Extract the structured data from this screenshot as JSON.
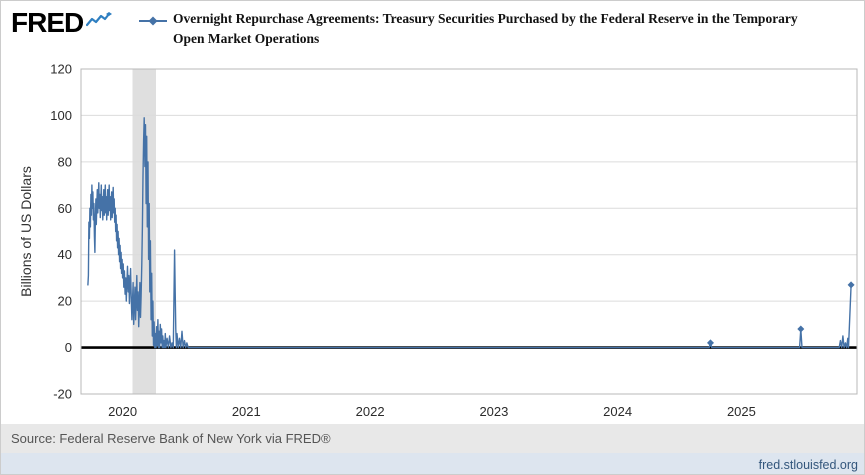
{
  "header": {
    "logo_text": "FRED",
    "title": "Overnight Repurchase Agreements: Treasury Securities Purchased by the Federal Reserve in the Temporary Open Market Operations"
  },
  "footer": {
    "source": "Source: Federal Reserve Bank of New York via FRED®",
    "link": "fred.stlouisfed.org"
  },
  "icons": {
    "logo_chart_icon": "line-chart-squiggle",
    "legend_marker_icon": "line-with-diamond"
  },
  "chart_data": {
    "type": "line",
    "title": "Overnight Repurchase Agreements: Treasury Securities Purchased by the Federal Reserve in the Temporary Open Market Operations",
    "xlabel": "",
    "ylabel": "Billions of US Dollars",
    "ylim": [
      -20,
      120
    ],
    "yticks": [
      -20,
      0,
      20,
      40,
      60,
      80,
      100,
      120
    ],
    "x_range": [
      2019.664,
      2025.934
    ],
    "xticks": [
      2020,
      2021,
      2022,
      2023,
      2024,
      2025
    ],
    "grid": "horizontal",
    "legend_position": "top",
    "zero_line": {
      "value": 0,
      "color": "#000000"
    },
    "recession_band": {
      "start": 2020.08,
      "end": 2020.27,
      "color": "#dfdfdf"
    },
    "series": [
      {
        "name": "Overnight Repurchase Agreements (Billions of US Dollars)",
        "color": "#4572a7",
        "points": [
          [
            2019.72,
            27
          ],
          [
            2019.724,
            31
          ],
          [
            2019.728,
            54
          ],
          [
            2019.732,
            47
          ],
          [
            2019.736,
            60
          ],
          [
            2019.74,
            52
          ],
          [
            2019.744,
            66
          ],
          [
            2019.748,
            57
          ],
          [
            2019.752,
            70
          ],
          [
            2019.756,
            60
          ],
          [
            2019.76,
            67
          ],
          [
            2019.764,
            55
          ],
          [
            2019.768,
            62
          ],
          [
            2019.772,
            48
          ],
          [
            2019.776,
            41
          ],
          [
            2019.78,
            56
          ],
          [
            2019.784,
            64
          ],
          [
            2019.788,
            53
          ],
          [
            2019.792,
            61
          ],
          [
            2019.796,
            68
          ],
          [
            2019.8,
            58
          ],
          [
            2019.804,
            65
          ],
          [
            2019.808,
            71
          ],
          [
            2019.812,
            60
          ],
          [
            2019.816,
            66
          ],
          [
            2019.82,
            56
          ],
          [
            2019.824,
            63
          ],
          [
            2019.828,
            70
          ],
          [
            2019.832,
            59
          ],
          [
            2019.836,
            65
          ],
          [
            2019.84,
            55
          ],
          [
            2019.844,
            62
          ],
          [
            2019.848,
            68
          ],
          [
            2019.852,
            57
          ],
          [
            2019.856,
            64
          ],
          [
            2019.86,
            70
          ],
          [
            2019.864,
            58
          ],
          [
            2019.868,
            65
          ],
          [
            2019.872,
            55
          ],
          [
            2019.876,
            61
          ],
          [
            2019.88,
            68
          ],
          [
            2019.884,
            57
          ],
          [
            2019.888,
            63
          ],
          [
            2019.892,
            70
          ],
          [
            2019.896,
            59
          ],
          [
            2019.9,
            65
          ],
          [
            2019.904,
            55
          ],
          [
            2019.908,
            61
          ],
          [
            2019.912,
            67
          ],
          [
            2019.916,
            56
          ],
          [
            2019.92,
            62
          ],
          [
            2019.924,
            69
          ],
          [
            2019.928,
            58
          ],
          [
            2019.932,
            64
          ],
          [
            2019.936,
            54
          ],
          [
            2019.94,
            60
          ],
          [
            2019.944,
            50
          ],
          [
            2019.948,
            57
          ],
          [
            2019.952,
            46
          ],
          [
            2019.956,
            53
          ],
          [
            2019.96,
            43
          ],
          [
            2019.964,
            50
          ],
          [
            2019.968,
            40
          ],
          [
            2019.972,
            47
          ],
          [
            2019.976,
            37
          ],
          [
            2019.98,
            44
          ],
          [
            2019.984,
            34
          ],
          [
            2019.988,
            41
          ],
          [
            2019.992,
            32
          ],
          [
            2019.996,
            38
          ],
          [
            2020.0,
            30
          ],
          [
            2020.005,
            36
          ],
          [
            2020.01,
            26
          ],
          [
            2020.015,
            33
          ],
          [
            2020.02,
            23
          ],
          [
            2020.025,
            30
          ],
          [
            2020.03,
            20
          ],
          [
            2020.035,
            28
          ],
          [
            2020.04,
            35
          ],
          [
            2020.045,
            24
          ],
          [
            2020.05,
            31
          ],
          [
            2020.055,
            19
          ],
          [
            2020.06,
            27
          ],
          [
            2020.065,
            34
          ],
          [
            2020.07,
            22
          ],
          [
            2020.075,
            12
          ],
          [
            2020.08,
            20
          ],
          [
            2020.085,
            28
          ],
          [
            2020.09,
            10
          ],
          [
            2020.095,
            18
          ],
          [
            2020.1,
            26
          ],
          [
            2020.105,
            12
          ],
          [
            2020.11,
            21
          ],
          [
            2020.115,
            31
          ],
          [
            2020.12,
            16
          ],
          [
            2020.125,
            24
          ],
          [
            2020.13,
            9
          ],
          [
            2020.135,
            18
          ],
          [
            2020.14,
            28
          ],
          [
            2020.145,
            13
          ],
          [
            2020.15,
            22
          ],
          [
            2020.155,
            36
          ],
          [
            2020.16,
            52
          ],
          [
            2020.165,
            74
          ],
          [
            2020.17,
            89
          ],
          [
            2020.175,
            99
          ],
          [
            2020.18,
            78
          ],
          [
            2020.185,
            96
          ],
          [
            2020.19,
            62
          ],
          [
            2020.195,
            91
          ],
          [
            2020.2,
            52
          ],
          [
            2020.205,
            80
          ],
          [
            2020.21,
            38
          ],
          [
            2020.215,
            62
          ],
          [
            2020.22,
            24
          ],
          [
            2020.225,
            46
          ],
          [
            2020.23,
            12
          ],
          [
            2020.235,
            32
          ],
          [
            2020.24,
            5
          ],
          [
            2020.245,
            20
          ],
          [
            2020.25,
            1
          ],
          [
            2020.255,
            11
          ],
          [
            2020.26,
            0
          ],
          [
            2020.265,
            6
          ],
          [
            2020.27,
            0
          ],
          [
            2020.275,
            9
          ],
          [
            2020.28,
            1
          ],
          [
            2020.285,
            12
          ],
          [
            2020.29,
            0
          ],
          [
            2020.295,
            7
          ],
          [
            2020.3,
            0
          ],
          [
            2020.305,
            10
          ],
          [
            2020.31,
            2
          ],
          [
            2020.315,
            8
          ],
          [
            2020.32,
            0
          ],
          [
            2020.325,
            5
          ],
          [
            2020.33,
            0
          ],
          [
            2020.335,
            3
          ],
          [
            2020.34,
            0
          ],
          [
            2020.345,
            6
          ],
          [
            2020.35,
            0
          ],
          [
            2020.36,
            4
          ],
          [
            2020.37,
            0
          ],
          [
            2020.38,
            5
          ],
          [
            2020.39,
            0
          ],
          [
            2020.4,
            2
          ],
          [
            2020.41,
            0
          ],
          [
            2020.42,
            42
          ],
          [
            2020.425,
            24
          ],
          [
            2020.43,
            8
          ],
          [
            2020.435,
            0
          ],
          [
            2020.44,
            6
          ],
          [
            2020.45,
            0
          ],
          [
            2020.46,
            4
          ],
          [
            2020.47,
            0
          ],
          [
            2020.48,
            7
          ],
          [
            2020.49,
            0
          ],
          [
            2020.5,
            3
          ],
          [
            2020.51,
            0
          ],
          [
            2020.52,
            2
          ],
          [
            2020.53,
            0
          ],
          [
            2020.6,
            0
          ],
          [
            2021.0,
            0
          ],
          [
            2022.0,
            0
          ],
          [
            2023.0,
            0
          ],
          [
            2024.0,
            0
          ],
          [
            2024.74,
            0
          ],
          [
            2024.75,
            2
          ],
          [
            2024.76,
            0
          ],
          [
            2025.0,
            0
          ],
          [
            2025.47,
            0
          ],
          [
            2025.48,
            8
          ],
          [
            2025.49,
            0
          ],
          [
            2025.79,
            0
          ],
          [
            2025.8,
            3
          ],
          [
            2025.81,
            0
          ],
          [
            2025.82,
            5
          ],
          [
            2025.83,
            0
          ],
          [
            2025.84,
            2
          ],
          [
            2025.85,
            0
          ],
          [
            2025.86,
            4
          ],
          [
            2025.865,
            0
          ],
          [
            2025.886,
            27
          ]
        ]
      }
    ],
    "markers": [
      [
        2024.75,
        2
      ],
      [
        2025.48,
        8
      ],
      [
        2025.886,
        27
      ]
    ]
  }
}
